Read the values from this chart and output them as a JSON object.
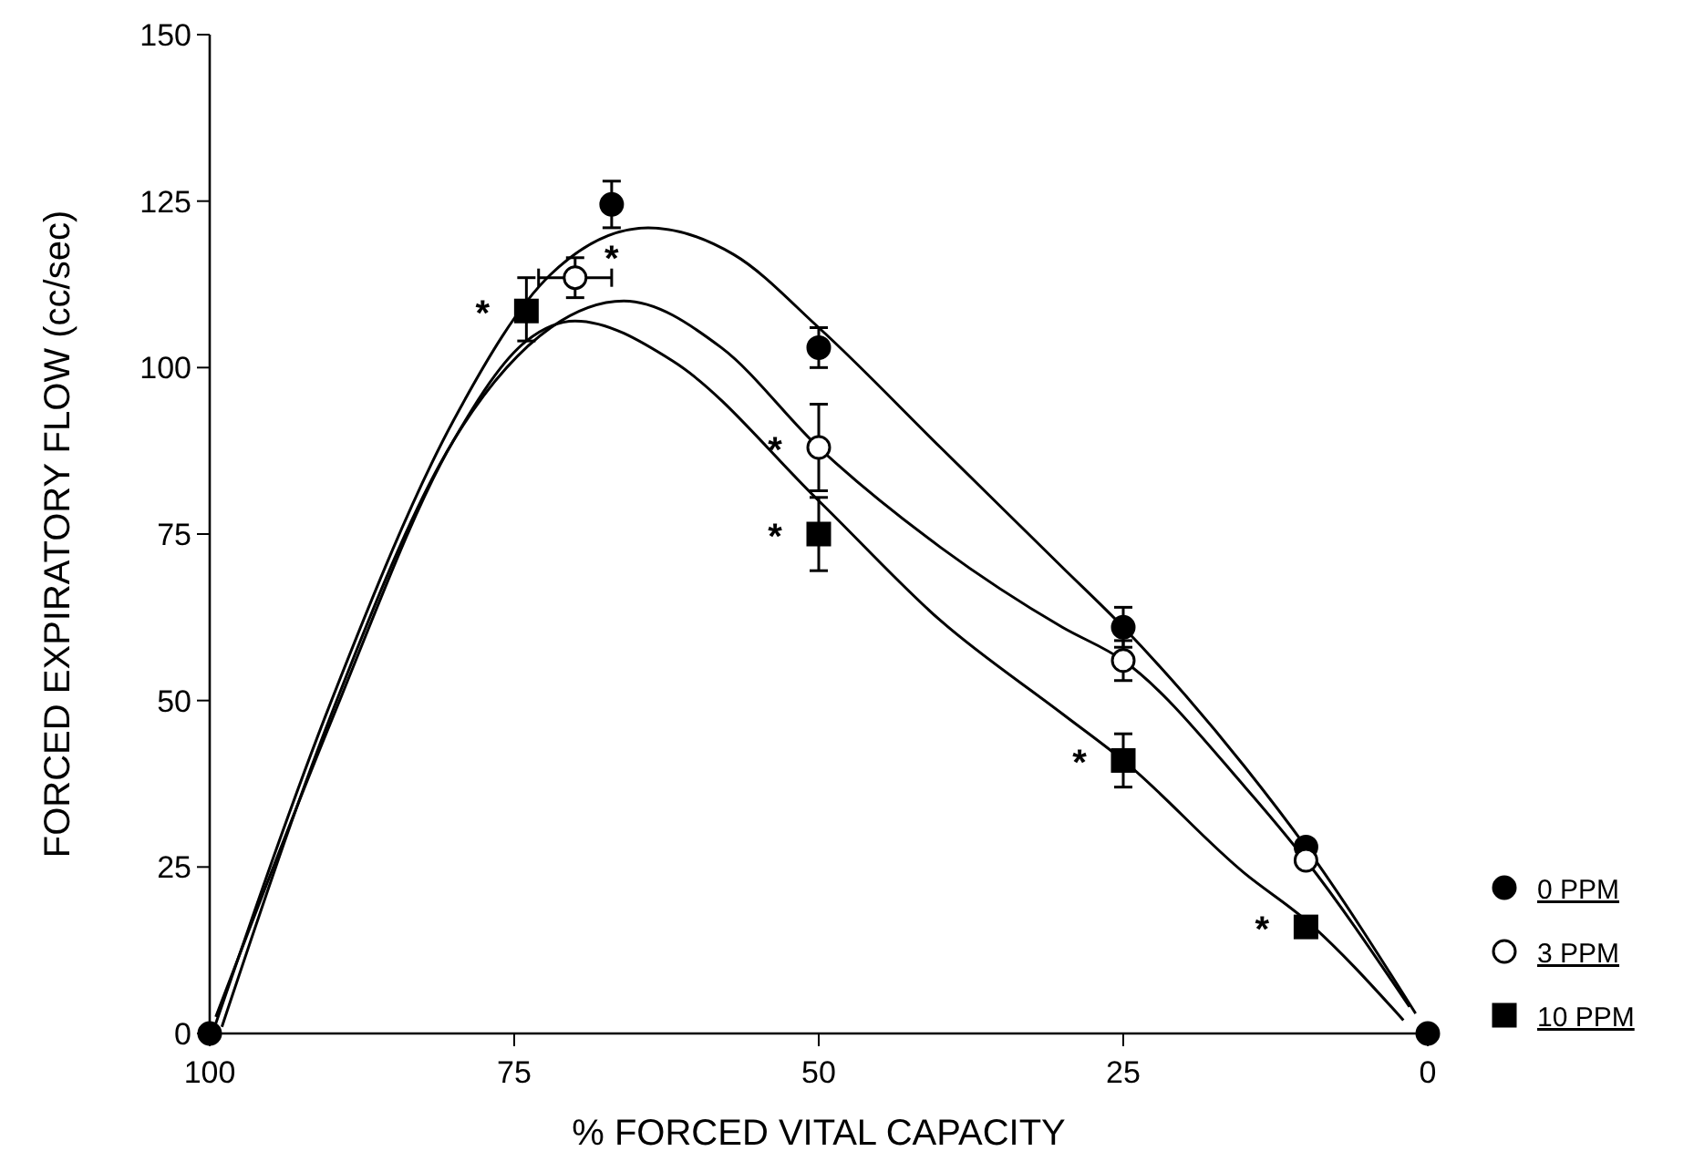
{
  "chart_data": {
    "type": "scatter",
    "xlabel": "% FORCED VITAL CAPACITY",
    "ylabel": "FORCED EXPIRATORY FLOW (cc/sec)",
    "xlim": [
      100,
      0
    ],
    "xticks": [
      100,
      75,
      50,
      25,
      0
    ],
    "ylim": [
      0,
      150
    ],
    "yticks": [
      0,
      25,
      50,
      75,
      100,
      125,
      150
    ],
    "grid": false,
    "legend": "right",
    "series": [
      {
        "name": "0 PPM",
        "marker": "circle",
        "color": "#000000",
        "x": [
          100,
          67,
          50,
          25,
          10,
          0
        ],
        "values": [
          0,
          124.5,
          103,
          61,
          28,
          0
        ],
        "errors": [
          null,
          3.5,
          3,
          3,
          null,
          null
        ]
      },
      {
        "name": "3 PPM",
        "marker": "circle",
        "color": "#ffffff",
        "x": [
          70,
          50,
          25,
          10
        ],
        "values": [
          113.5,
          88,
          56,
          26
        ],
        "errors": [
          3,
          6.5,
          3,
          null
        ],
        "xerrors": [
          3,
          null,
          null,
          null
        ]
      },
      {
        "name": "10 PPM",
        "marker": "square",
        "color": "#000000",
        "x": [
          74,
          50,
          25,
          10
        ],
        "values": [
          108.5,
          75,
          41,
          16
        ],
        "errors": [
          [
            104,
            113.5
          ],
          5.5,
          4,
          null
        ]
      },
      {
        "type": "line",
        "marker": "none",
        "color": "#000000",
        "x": [
          99.5,
          90,
          80,
          72,
          64,
          57,
          50,
          40,
          30,
          25,
          15,
          10,
          1
        ],
        "values": [
          1.5,
          50,
          92,
          114,
          121,
          117,
          106,
          88,
          70,
          61,
          40,
          28,
          3
        ]
      },
      {
        "type": "line",
        "marker": "none",
        "color": "#000000",
        "x": [
          99,
          90,
          80,
          72,
          66,
          58,
          50,
          40,
          30,
          25,
          15,
          10,
          1.5
        ],
        "values": [
          1,
          48,
          89,
          106,
          110,
          103,
          88,
          73,
          61,
          56,
          37,
          26,
          4
        ]
      },
      {
        "type": "line",
        "marker": "none",
        "color": "#000000",
        "x": [
          99.5,
          90,
          80,
          74,
          70,
          62,
          50,
          40,
          30,
          25,
          15,
          10,
          2
        ],
        "values": [
          2.5,
          47,
          89,
          104,
          107,
          101,
          80,
          62,
          48,
          41,
          24,
          17,
          2
        ]
      }
    ],
    "annotations": [
      {
        "text": "*",
        "x": 70,
        "y": 113.5
      },
      {
        "text": "*",
        "x": 74,
        "y": 108.5
      },
      {
        "text": "*",
        "x": 50,
        "y": 88
      },
      {
        "text": "*",
        "x": 50,
        "y": 75
      },
      {
        "text": "*",
        "x": 25,
        "y": 41
      },
      {
        "text": "*",
        "x": 10,
        "y": 16
      }
    ]
  }
}
